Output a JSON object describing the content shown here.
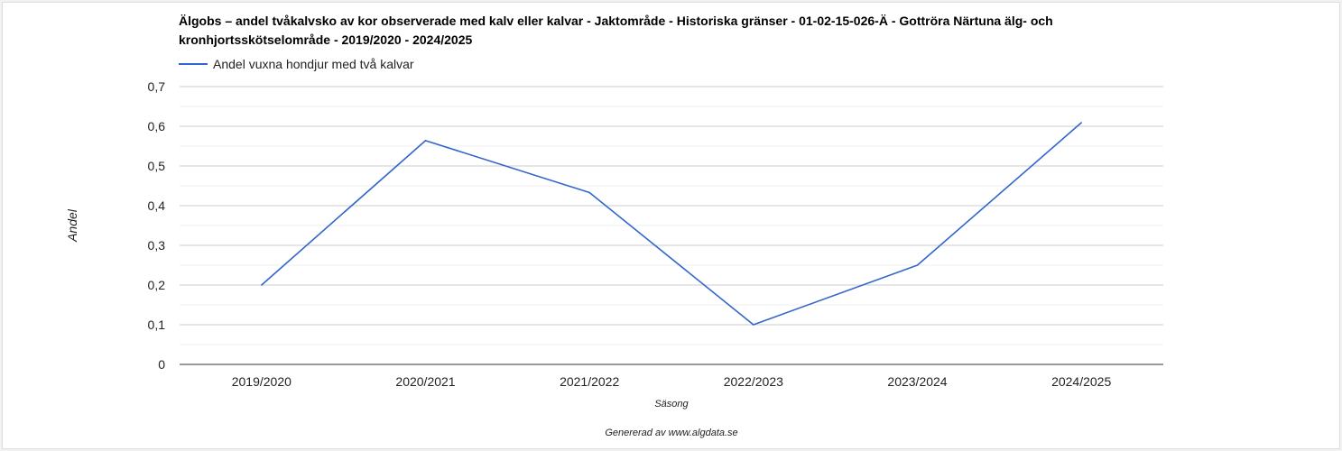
{
  "chart_data": {
    "type": "line",
    "title": "Älgobs – andel tvåkalvsko av kor observerade med kalv eller kalvar - Jaktområde - Historiska gränser - 01-02-15-026-Ä - Gottröra Närtuna älg- och kronhjortsskötselområde - 2019/2020 - 2024/2025",
    "xlabel": "Säsong",
    "ylabel": "Andel",
    "categories": [
      "2019/2020",
      "2020/2021",
      "2021/2022",
      "2022/2023",
      "2023/2024",
      "2024/2025"
    ],
    "series": [
      {
        "name": "Andel vuxna hondjur med två kalvar",
        "values": [
          0.2,
          0.564,
          0.433,
          0.1,
          0.25,
          0.609
        ],
        "color": "#3366cc"
      }
    ],
    "ylim": [
      0,
      0.7
    ],
    "yticks": [
      "0",
      "0,1",
      "0,2",
      "0,3",
      "0,4",
      "0,5",
      "0,6",
      "0,7"
    ],
    "grid": true,
    "legend_position": "top-left"
  },
  "footer": "Genererad av www.algdata.se"
}
